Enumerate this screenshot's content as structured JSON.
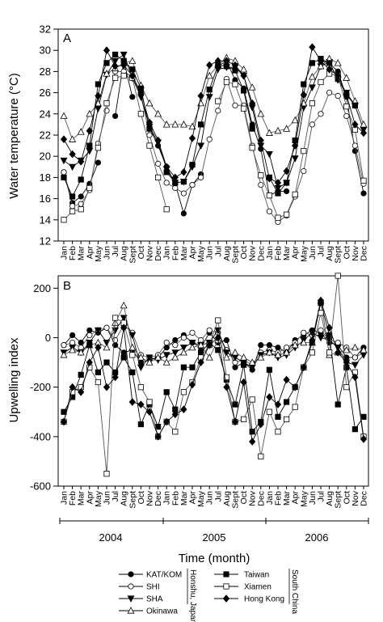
{
  "chart_data": [
    {
      "panel": "A",
      "type": "line",
      "ylabel": "Water temperature (°C)",
      "ylim": [
        12,
        32
      ],
      "yticks": [
        12,
        14,
        16,
        18,
        20,
        22,
        24,
        26,
        28,
        30,
        32
      ],
      "x_tick_labels": [
        "Jan",
        "Feb",
        "Mar",
        "Apr",
        "May",
        "Jun",
        "Jul",
        "Aug",
        "Sept",
        "Oct",
        "Nov",
        "Dec",
        "Jan",
        "Feb",
        "Mar",
        "Apr",
        "May",
        "Jun",
        "Jul",
        "Aug",
        "Sept",
        "Oct",
        "Nov",
        "Dec",
        "Jan",
        "Feb",
        "Mar",
        "Apr",
        "May",
        "Jun",
        "Jul",
        "Aug",
        "Sept",
        "Oct",
        "Nov",
        "Dec"
      ],
      "series": [
        {
          "name": "KAT/KOM",
          "marker": "circle-filled",
          "values": [
            18.5,
            15.6,
            16.2,
            17.4,
            19.4,
            null,
            23.8,
            29.0,
            25.6,
            null,
            22.7,
            21.0,
            19.0,
            17.4,
            14.6,
            17.3,
            18.3,
            null,
            28.5,
            29.0,
            27.2,
            26.4,
            23.0,
            20.7,
            16.3,
            16.7,
            16.7,
            null,
            null,
            null,
            29.0,
            28.8,
            28.0,
            25.6,
            20.5,
            16.5
          ]
        },
        {
          "name": "SHI",
          "marker": "circle-open",
          "values": [
            18.5,
            15.3,
            15.5,
            16.8,
            21.2,
            24.3,
            28.0,
            28.0,
            27.5,
            25.8,
            22.0,
            19.3,
            17.5,
            17.0,
            16.5,
            17.3,
            18.0,
            21.6,
            24.3,
            27.3,
            24.8,
            24.8,
            21.0,
            17.3,
            14.8,
            13.8,
            14.4,
            16.2,
            18.6,
            23.0,
            24.0,
            26.0,
            25.7,
            23.8,
            21.0,
            17.4
          ]
        },
        {
          "name": "SHA",
          "marker": "triangle-down-filled",
          "values": [
            19.6,
            19.0,
            19.6,
            20.5,
            24.5,
            27.7,
            29.0,
            29.6,
            27.4,
            25.6,
            22.8,
            21.3,
            18.8,
            17.5,
            17.6,
            19.0,
            21.0,
            25.6,
            28.2,
            28.4,
            28.4,
            27.6,
            24.6,
            21.0,
            20.2,
            17.0,
            17.5,
            19.8,
            24.6,
            26.5,
            28.5,
            28.9,
            27.2,
            26.0,
            24.8,
            22.5
          ]
        },
        {
          "name": "Okinawa",
          "marker": "triangle-up-open",
          "values": [
            23.8,
            21.6,
            22.3,
            24.0,
            25.0,
            27.8,
            28.3,
            28.8,
            29.0,
            26.7,
            25.0,
            24.0,
            23.0,
            23.0,
            23.0,
            22.8,
            25.0,
            27.6,
            28.6,
            29.3,
            29.0,
            28.2,
            26.5,
            24.0,
            22.2,
            22.4,
            22.6,
            23.4,
            25.0,
            27.5,
            28.5,
            29.2,
            28.8,
            27.4,
            25.2,
            23.0
          ]
        },
        {
          "name": "Taiwan",
          "marker": "square-filled",
          "values": [
            18.0,
            16.2,
            17.8,
            21.0,
            26.8,
            28.8,
            29.6,
            29.0,
            28.2,
            26.4,
            22.6,
            null,
            18.5,
            17.5,
            17.6,
            19.2,
            23.0,
            26.3,
            28.6,
            28.5,
            28.1,
            26.2,
            22.6,
            null,
            18.0,
            16.5,
            17.5,
            21.5,
            26.8,
            28.8,
            29.2,
            28.8,
            27.3,
            25.8,
            24.8,
            null
          ]
        },
        {
          "name": "Xiamen",
          "marker": "square-open",
          "values": [
            14.0,
            14.8,
            15.0,
            17.0,
            20.8,
            25.0,
            27.4,
            27.6,
            27.4,
            24.0,
            21.0,
            18.0,
            15.0,
            null,
            null,
            null,
            null,
            null,
            25.2,
            27.0,
            26.8,
            24.5,
            20.8,
            18.2,
            16.3,
            14.2,
            14.5,
            16.4,
            20.5,
            25.0,
            27.0,
            27.8,
            27.6,
            24.7,
            22.5,
            17.7
          ]
        },
        {
          "name": "Hong Kong",
          "marker": "diamond-filled",
          "values": [
            21.6,
            20.2,
            19.5,
            22.4,
            25.7,
            30.0,
            28.5,
            28.6,
            27.6,
            26.0,
            23.2,
            21.5,
            19.0,
            18.0,
            18.5,
            21.7,
            25.7,
            28.6,
            29.0,
            29.0,
            28.6,
            27.6,
            25.0,
            21.5,
            17.9,
            17.5,
            18.6,
            21.0,
            25.8,
            30.3,
            29.0,
            28.2,
            27.6,
            25.8,
            23.0,
            22.2
          ]
        }
      ]
    },
    {
      "panel": "B",
      "type": "line",
      "ylabel": "Upwelling index",
      "ylim": [
        -600,
        250
      ],
      "yticks": [
        -600,
        -400,
        -200,
        0,
        200
      ],
      "x_tick_labels": [
        "Jan",
        "Feb",
        "Mar",
        "Apr",
        "May",
        "Jun",
        "Jul",
        "Aug",
        "Sept",
        "Oct",
        "Nov",
        "Dec",
        "Jan",
        "Feb",
        "Mar",
        "Apr",
        "May",
        "Jun",
        "Jul",
        "Aug",
        "Sept",
        "Oct",
        "Nov",
        "Dec",
        "Jan",
        "Feb",
        "Mar",
        "Apr",
        "May",
        "Jun",
        "Jul",
        "Aug",
        "Sept",
        "Oct",
        "Nov",
        "Dec"
      ],
      "x_group_labels": [
        "2004",
        "2005",
        "2006"
      ],
      "series": [
        {
          "name": "KAT/KOM",
          "marker": "circle-filled",
          "values": [
            -30,
            10,
            -20,
            30,
            20,
            40,
            -30,
            -60,
            -50,
            -100,
            -90,
            -80,
            -40,
            -10,
            10,
            -20,
            -40,
            20,
            -20,
            -10,
            -120,
            -100,
            -130,
            -30,
            -30,
            -40,
            -60,
            -10,
            10,
            30,
            20,
            -20,
            -30,
            -80,
            -80,
            -40
          ]
        },
        {
          "name": "SHI",
          "marker": "circle-open",
          "values": [
            -30,
            -20,
            -40,
            10,
            30,
            40,
            -10,
            50,
            20,
            -70,
            -80,
            -70,
            -20,
            -30,
            0,
            20,
            -10,
            30,
            20,
            -50,
            -100,
            -90,
            -110,
            -60,
            -50,
            -60,
            -40,
            -20,
            20,
            10,
            30,
            -10,
            -20,
            -40,
            -80,
            -60
          ]
        },
        {
          "name": "SHA",
          "marker": "triangle-down-filled",
          "values": [
            -60,
            -40,
            -60,
            -20,
            30,
            -20,
            30,
            80,
            10,
            -120,
            -80,
            -90,
            -70,
            -60,
            -40,
            -20,
            -30,
            -20,
            30,
            -60,
            -80,
            -100,
            -120,
            -70,
            -60,
            -80,
            -70,
            -40,
            -10,
            20,
            0,
            -10,
            -40,
            -100,
            -110,
            -70
          ]
        },
        {
          "name": "Okinawa",
          "marker": "triangle-up-open",
          "values": [
            -70,
            -50,
            -60,
            -30,
            -20,
            -40,
            60,
            130,
            -40,
            -80,
            -100,
            -80,
            -100,
            -80,
            -60,
            -40,
            -30,
            -80,
            -10,
            -80,
            -60,
            -80,
            -100,
            -80,
            -60,
            -70,
            -60,
            -30,
            -20,
            -20,
            150,
            -70,
            -60,
            -50,
            -40,
            -50
          ]
        },
        {
          "name": "Taiwan",
          "marker": "square-filled",
          "values": [
            -300,
            -240,
            -150,
            -30,
            -140,
            -100,
            -140,
            -80,
            -140,
            -350,
            -270,
            -360,
            -220,
            -290,
            -120,
            -120,
            -60,
            -20,
            -50,
            -170,
            -270,
            -110,
            -380,
            -340,
            -130,
            -320,
            -260,
            -200,
            -120,
            -20,
            140,
            10,
            -270,
            -120,
            -370,
            -320
          ]
        },
        {
          "name": "Xiamen",
          "marker": "square-open",
          "values": [
            -340,
            -220,
            -200,
            -120,
            -180,
            -550,
            80,
            60,
            -70,
            -200,
            -260,
            -400,
            -340,
            -380,
            -220,
            -180,
            -80,
            -30,
            70,
            -160,
            -340,
            -330,
            -250,
            -480,
            -300,
            -380,
            -330,
            -280,
            -120,
            -60,
            100,
            -60,
            250,
            -200,
            -140,
            -400
          ]
        },
        {
          "name": "Hong Kong",
          "marker": "diamond-filled",
          "values": [
            -340,
            -200,
            -220,
            -100,
            -40,
            -200,
            -160,
            40,
            -260,
            -270,
            -300,
            -400,
            -340,
            -310,
            -290,
            -190,
            -100,
            -30,
            0,
            -200,
            -340,
            -180,
            -420,
            -350,
            -240,
            -270,
            -170,
            -200,
            -120,
            -10,
            150,
            40,
            -60,
            -100,
            -160,
            -410
          ]
        }
      ]
    }
  ],
  "time_axis": {
    "title": "Time (month)",
    "years": [
      "2004",
      "2005",
      "2006"
    ]
  },
  "legend": {
    "left_group_label": "Honshu, Japan",
    "right_group_label": "South China",
    "left_items": [
      "KAT/KOM",
      "SHI",
      "SHA",
      "Okinawa"
    ],
    "right_items": [
      "Taiwan",
      "Xiamen",
      "Hong Kong"
    ]
  }
}
